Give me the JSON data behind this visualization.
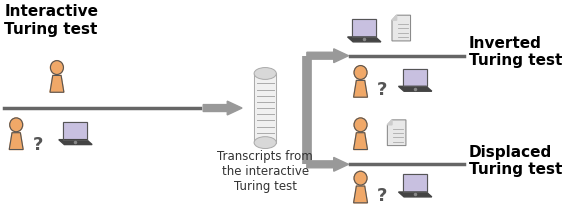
{
  "bg_color": "#ffffff",
  "person_color": "#f0a868",
  "person_outline": "#555555",
  "laptop_screen_color": "#c8c0e0",
  "document_color": "#e8e8e8",
  "document_outline": "#888888",
  "arrow_color": "#999999",
  "separator_color": "#666666",
  "title_left": "Interactive\nTuring test",
  "title_right_top": "Inverted\nTuring test",
  "title_right_bottom": "Displaced\nTuring test",
  "transcript_label": "Transcripts from\nthe interactive\nTuring test",
  "title_fontsize": 11,
  "label_fontsize": 8.5,
  "fig_w": 5.74,
  "fig_h": 2.22,
  "dpi": 100
}
